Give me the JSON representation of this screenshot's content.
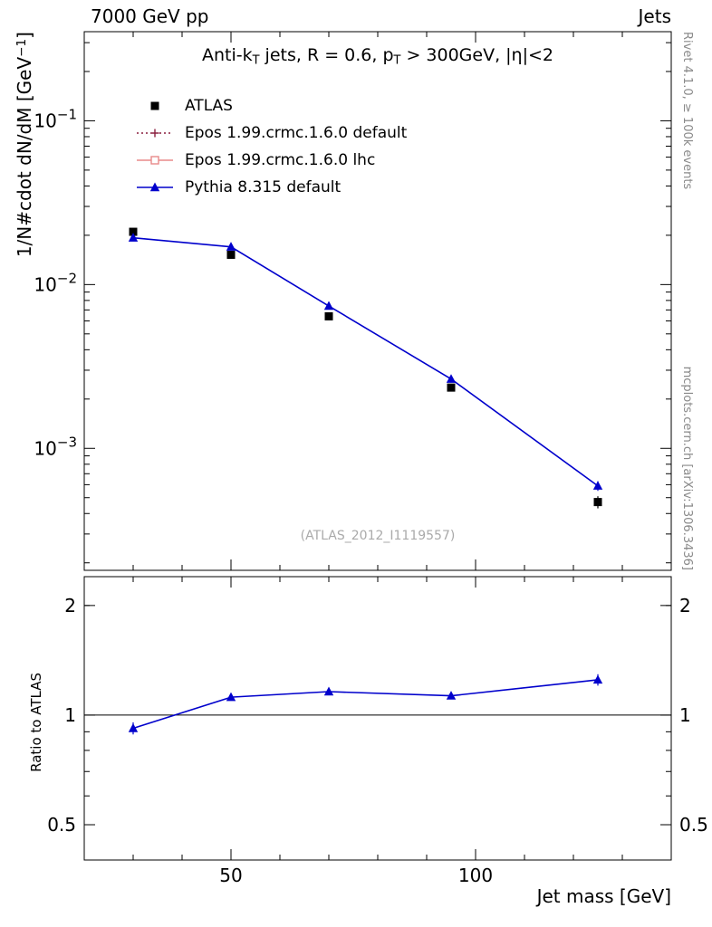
{
  "header": {
    "left_label": "7000 GeV pp",
    "right_label": "Jets"
  },
  "sidebar_texts": {
    "rivet": "Rivet 4.1.0, ≥ 100k events",
    "mcplots": "mcplots.cern.ch [arXiv:1306.3436]"
  },
  "watermark": "(ATLAS_2012_I1119557)",
  "chart_data": {
    "type": "line",
    "title": "Anti-kT jets, R = 0.6, pT > 300GeV, |η|<2",
    "title_parts": [
      {
        "t": "Anti-k"
      },
      {
        "t": "T",
        "sub": true
      },
      {
        "t": " jets, R = 0.6, p"
      },
      {
        "t": "T",
        "sub": true
      },
      {
        "t": " > 300GeV, |η|<2"
      }
    ],
    "xlabel": "Jet mass [GeV]",
    "ylabel": "1/N#cdot dN/dM [GeV−1]",
    "ylabel_parts": [
      {
        "t": "1/N#cdot dN/dM [GeV"
      },
      {
        "t": "−1",
        "sup": true
      },
      {
        "t": "]"
      }
    ],
    "ratio_ylabel": "Ratio to ATLAS",
    "grid": false,
    "legend_position": "top-left-inside",
    "x_axis": {
      "scale": "linear",
      "lim": [
        20,
        140
      ],
      "major_ticks": [
        50,
        100
      ],
      "minor_step": 10
    },
    "y_axis": {
      "scale": "log",
      "lim": [
        0.00018,
        0.35
      ],
      "major_ticks": [
        0.1,
        0.01,
        0.001
      ]
    },
    "ratio_axis": {
      "scale": "log",
      "lim": [
        0.4,
        2.4
      ],
      "labeled_ticks": [
        0.5,
        1,
        2
      ],
      "minor_ticks": [
        0.4,
        0.6,
        0.7,
        0.8,
        0.9,
        2
      ]
    },
    "x": [
      30,
      50,
      70,
      95,
      125
    ],
    "series": [
      {
        "name": "ATLAS",
        "draw": "markers",
        "marker": "square-filled",
        "color": "#000000",
        "values": [
          0.021,
          0.0152,
          0.0064,
          0.00235,
          0.00047
        ],
        "yerr": [
          0.0009,
          0.0006,
          0.0003,
          0.00012,
          4e-05
        ]
      },
      {
        "name": "Epos 1.99.crmc.1.6.0 default",
        "draw": "line",
        "line_style": "dotted",
        "marker": "cross-open",
        "color": "#8a1f3f",
        "values": null
      },
      {
        "name": "Epos 1.99.crmc.1.6.0 lhc",
        "draw": "line",
        "line_style": "solid",
        "marker": "square-open",
        "color": "#e88a8a",
        "values": null
      },
      {
        "name": "Pythia 8.315 default",
        "draw": "line-markers",
        "line_style": "solid",
        "marker": "triangle-filled",
        "color": "#0000cc",
        "values": [
          0.0193,
          0.017,
          0.0074,
          0.00265,
          0.00059
        ],
        "yerr": [
          0.0005,
          0.0004,
          0.0002,
          0.0001,
          4e-05
        ]
      }
    ],
    "ratio": {
      "reference": 1,
      "series": [
        {
          "name": "Pythia 8.315 default",
          "draw": "line-markers",
          "line_style": "solid",
          "marker": "triangle-filled",
          "color": "#0000cc",
          "values": [
            0.92,
            1.12,
            1.16,
            1.13,
            1.25
          ],
          "yerr": [
            0.035,
            0.02,
            0.025,
            0.025,
            0.045
          ]
        }
      ]
    }
  }
}
